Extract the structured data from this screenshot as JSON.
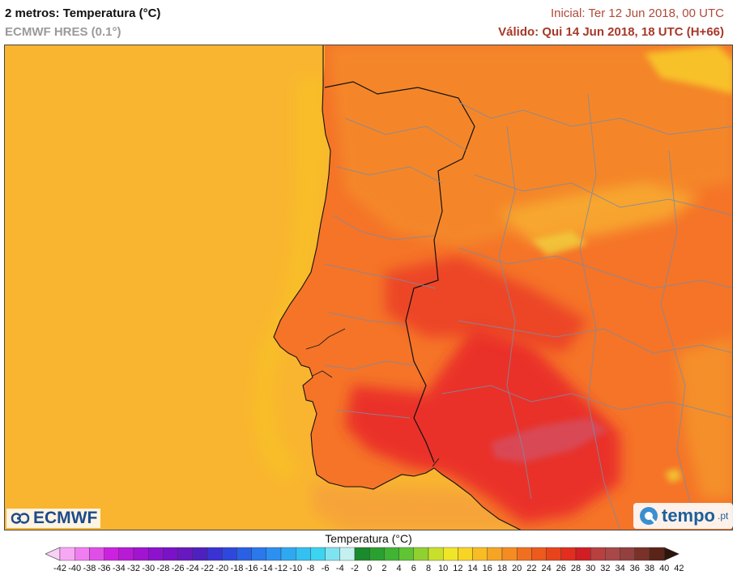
{
  "header": {
    "title": "2 metros: Temperatura (°C)",
    "subtitle": "ECMWF HRES (0.1°)",
    "initial": "Inicial: Ter 12 Jun 2018, 00 UTC",
    "valid": "Válido: Qui 14 Jun 2018, 18 UTC (H+66)"
  },
  "logos": {
    "left": "ECMWF",
    "right_main": "tempo",
    "right_suffix": ".pt"
  },
  "colorbar": {
    "title": "Temperatura (°C)",
    "labels": [
      "-42",
      "-40",
      "-38",
      "-36",
      "-34",
      "-32",
      "-30",
      "-28",
      "-26",
      "-24",
      "-22",
      "-20",
      "-18",
      "-16",
      "-14",
      "-12",
      "-10",
      "-8",
      "-6",
      "-4",
      "-2",
      "0",
      "2",
      "4",
      "6",
      "8",
      "10",
      "12",
      "14",
      "16",
      "18",
      "20",
      "22",
      "24",
      "26",
      "28",
      "30",
      "32",
      "34",
      "36",
      "38",
      "40",
      "42"
    ],
    "colors": [
      "#f8d0f8",
      "#f7a8f4",
      "#f07ef0",
      "#e04ee8",
      "#cc22e0",
      "#b81ad6",
      "#a214d0",
      "#8e12cc",
      "#7a12c8",
      "#6818c0",
      "#4f20c0",
      "#3a32d2",
      "#2e48dc",
      "#2a60e4",
      "#2a78ea",
      "#2c90f0",
      "#30a8f0",
      "#34c0f0",
      "#3cd4f0",
      "#80e4f0",
      "#c4f0f0",
      "#1a8a2c",
      "#2aa030",
      "#40b434",
      "#60c434",
      "#90d030",
      "#c8e02c",
      "#f0e628",
      "#f8d424",
      "#f8bc24",
      "#f6a424",
      "#f48c22",
      "#f07020",
      "#ec5a1e",
      "#e8441c",
      "#e22e1e",
      "#d01e24",
      "#b84040",
      "#a84848",
      "#924040",
      "#7a3228",
      "#5a2418",
      "#2e140c"
    ]
  },
  "map": {
    "sea_color": "#f9b530",
    "land_base_color": "#f57428",
    "hot_color": "#e8282a"
  }
}
